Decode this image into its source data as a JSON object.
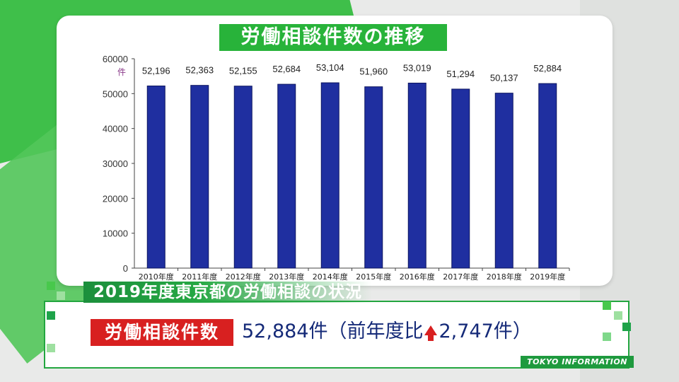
{
  "chart_data": {
    "type": "bar",
    "title": "労働相談件数の推移",
    "ylabel": "件",
    "ylim": [
      0,
      60000
    ],
    "yticks": [
      0,
      10000,
      20000,
      30000,
      40000,
      50000,
      60000
    ],
    "categories": [
      "2010年度",
      "2011年度",
      "2012年度",
      "2013年度",
      "2014年度",
      "2015年度",
      "2016年度",
      "2017年度",
      "2018年度",
      "2019年度"
    ],
    "values": [
      52196,
      52363,
      52155,
      52684,
      53104,
      51960,
      53019,
      51294,
      50137,
      52884
    ],
    "data_labels": [
      "52,196",
      "52,363",
      "52,155",
      "52,684",
      "53,104",
      "51,960",
      "53,019",
      "51,294",
      "50,137",
      "52,884"
    ],
    "bar_color": "#1f2fa0",
    "grid": false
  },
  "banner": {
    "subtitle": "2019年度東京都の労働相談の状況",
    "label": "労働相談件数",
    "value_main": "52,884件（前年度比",
    "value_change": "2,747件）"
  },
  "footer": {
    "tag": "TOKYO INFORMATION"
  },
  "colors": {
    "brand_green": "#28b33a",
    "label_red": "#d82020",
    "value_navy": "#152a78"
  }
}
